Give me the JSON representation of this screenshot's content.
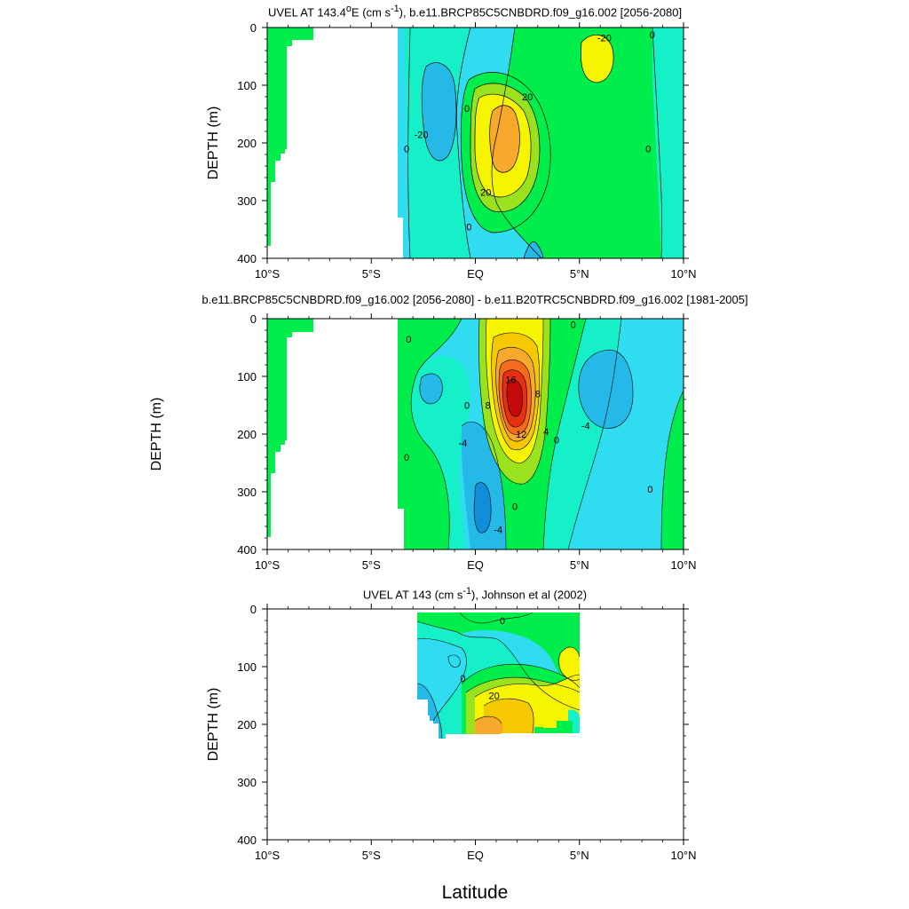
{
  "figure": {
    "xlabel": "Latitude",
    "x_tick_labels": [
      "10°S",
      "5°S",
      "EQ",
      "5°N",
      "10°N"
    ],
    "y_tick_labels": [
      "0",
      "100",
      "200",
      "300",
      "400"
    ]
  },
  "colors": {
    "land": "#00ee4c",
    "contour_line": "#000000",
    "levels": [
      "#0f8fd9",
      "#25b9e8",
      "#30dcf0",
      "#16f0c8",
      "#00ee4c",
      "#9ae11e",
      "#f6f400",
      "#f5c800",
      "#f7a92b",
      "#f36b1d",
      "#e63010",
      "#c40a0a"
    ]
  },
  "chart_data": [
    {
      "type": "heatmap",
      "title_html": "UVEL AT 143.4<sup>o</sup>E (cm s<sup>-1</sup>), b.e11.BRCP85C5CNBDRD.f09_g16.002 [2056-2080]",
      "title": "UVEL AT 143.4oE (cm s-1), b.e11.BRCP85C5CNBDRD.f09_g16.002 [2056-2080]",
      "xlabel": "",
      "ylabel": "DEPTH (m)",
      "xlim": [
        -10,
        10
      ],
      "ylim": [
        400,
        0
      ],
      "x_ticks": [
        -10,
        -5,
        0,
        5,
        10
      ],
      "y_ticks": [
        0,
        100,
        200,
        300,
        400
      ],
      "contour_interval": 10,
      "contour_labels": [
        {
          "text": "-20",
          "lat": -2.6,
          "depth": 185
        },
        {
          "text": "0",
          "lat": -3.3,
          "depth": 210
        },
        {
          "text": "0",
          "lat": -0.4,
          "depth": 140
        },
        {
          "text": "20",
          "lat": 2.5,
          "depth": 120
        },
        {
          "text": "20",
          "lat": 0.5,
          "depth": 285
        },
        {
          "text": "0",
          "lat": -0.3,
          "depth": 345
        },
        {
          "text": "-20",
          "lat": 6.2,
          "depth": 18
        },
        {
          "text": "0",
          "lat": 8.5,
          "depth": 12
        },
        {
          "text": "0",
          "lat": 8.3,
          "depth": 210
        }
      ]
    },
    {
      "type": "heatmap",
      "title_html": "b.e11.BRCP85C5CNBDRD.f09_g16.002 [2056-2080] - b.e11.B20TRC5CNBDRD.f09_g16.002 [1981-2005]",
      "title": "b.e11.BRCP85C5CNBDRD.f09_g16.002 [2056-2080] - b.e11.B20TRC5CNBDRD.f09_g16.002 [1981-2005]",
      "xlabel": "",
      "ylabel": "DEPTH (m)",
      "xlim": [
        -10,
        10
      ],
      "ylim": [
        400,
        0
      ],
      "x_ticks": [
        -10,
        -5,
        0,
        5,
        10
      ],
      "y_ticks": [
        0,
        100,
        200,
        300,
        400
      ],
      "contour_interval": 2,
      "contour_labels": [
        {
          "text": "0",
          "lat": -3.2,
          "depth": 35
        },
        {
          "text": "0",
          "lat": 4.7,
          "depth": 10
        },
        {
          "text": "16",
          "lat": 1.7,
          "depth": 105
        },
        {
          "text": "0",
          "lat": -0.4,
          "depth": 150
        },
        {
          "text": "8",
          "lat": 0.6,
          "depth": 150
        },
        {
          "text": "8",
          "lat": 3.0,
          "depth": 130
        },
        {
          "text": "-4",
          "lat": 5.3,
          "depth": 185
        },
        {
          "text": "-4",
          "lat": -0.6,
          "depth": 215
        },
        {
          "text": "12",
          "lat": 2.2,
          "depth": 200
        },
        {
          "text": "4",
          "lat": 3.4,
          "depth": 195
        },
        {
          "text": "0",
          "lat": 3.9,
          "depth": 210
        },
        {
          "text": "0",
          "lat": -3.3,
          "depth": 240
        },
        {
          "text": "0",
          "lat": 8.4,
          "depth": 295
        },
        {
          "text": "0",
          "lat": 1.9,
          "depth": 325
        },
        {
          "text": "-4",
          "lat": 1.1,
          "depth": 365
        }
      ]
    },
    {
      "type": "heatmap",
      "title_html": "UVEL AT 143 (cm s<sup>-1</sup>), Johnson et al (2002)",
      "title": "UVEL AT 143 (cm s-1), Johnson et al (2002)",
      "xlabel": "Latitude",
      "ylabel": "DEPTH (m)",
      "xlim": [
        -10,
        10
      ],
      "ylim": [
        400,
        0
      ],
      "x_ticks": [
        -10,
        -5,
        0,
        5,
        10
      ],
      "y_ticks": [
        0,
        100,
        200,
        300,
        400
      ],
      "contour_interval": 10,
      "contour_labels": [
        {
          "text": "0",
          "lat": 1.3,
          "depth": 20
        },
        {
          "text": "0",
          "lat": -0.6,
          "depth": 120
        },
        {
          "text": "20",
          "lat": 0.9,
          "depth": 150
        }
      ]
    }
  ]
}
